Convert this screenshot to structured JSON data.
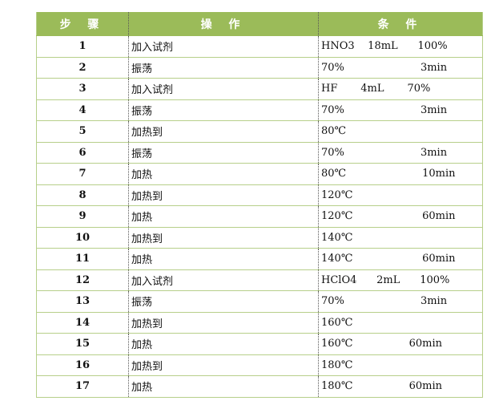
{
  "header": {
    "step": "步 骤",
    "operation": "操 作",
    "condition": "条 件"
  },
  "rows": [
    {
      "step": "1",
      "op": "加入试剂",
      "cond": "HNO3    18mL      100%"
    },
    {
      "step": "2",
      "op": "振荡",
      "cond": "70%                       3min"
    },
    {
      "step": "3",
      "op": "加入试剂",
      "cond": "HF       4mL       70%"
    },
    {
      "step": "4",
      "op": "振荡",
      "cond": "70%                       3min"
    },
    {
      "step": "5",
      "op": "加热到",
      "cond": "80℃"
    },
    {
      "step": "6",
      "op": "振荡",
      "cond": "70%                       3min"
    },
    {
      "step": "7",
      "op": "加热",
      "cond": "80℃                       10min"
    },
    {
      "step": "8",
      "op": "加热到",
      "cond": "120℃"
    },
    {
      "step": "9",
      "op": "加热",
      "cond": "120℃                     60min"
    },
    {
      "step": "10",
      "op": "加热到",
      "cond": "140℃"
    },
    {
      "step": "11",
      "op": "加热",
      "cond": "140℃                     60min"
    },
    {
      "step": "12",
      "op": "加入试剂",
      "cond": "HClO4      2mL      100%"
    },
    {
      "step": "13",
      "op": "振荡",
      "cond": "70%                       3min"
    },
    {
      "step": "14",
      "op": "加热到",
      "cond": "160℃"
    },
    {
      "step": "15",
      "op": "加热",
      "cond": "160℃                 60min"
    },
    {
      "step": "16",
      "op": "加热到",
      "cond": "180℃"
    },
    {
      "step": "17",
      "op": "加热",
      "cond": "180℃                 60min"
    }
  ],
  "colors": {
    "header": "#9bbb59"
  }
}
